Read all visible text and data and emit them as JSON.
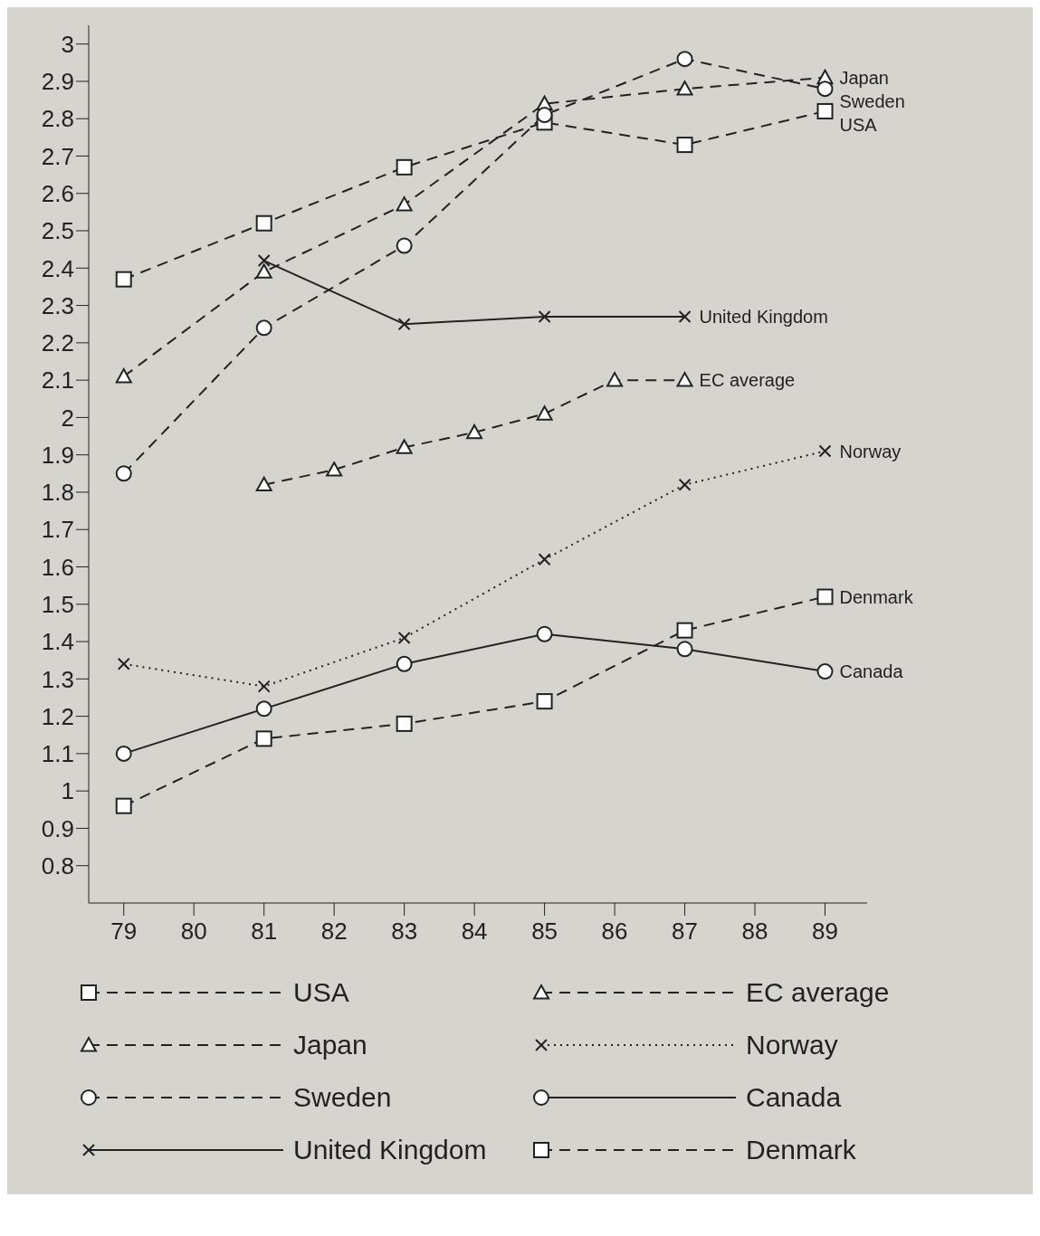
{
  "chart_data": {
    "type": "line",
    "xlim": [
      78.5,
      89.6
    ],
    "xticks": [
      79,
      80,
      81,
      82,
      83,
      84,
      85,
      86,
      87,
      88,
      89
    ],
    "ylim": [
      0.7,
      3.05
    ],
    "yticks": [
      0.8,
      0.9,
      1,
      1.1,
      1.2,
      1.3,
      1.4,
      1.5,
      1.6,
      1.7,
      1.8,
      1.9,
      2,
      2.1,
      2.2,
      2.3,
      2.4,
      2.5,
      2.6,
      2.7,
      2.8,
      2.9,
      3
    ],
    "grid": false,
    "legend": "bottom",
    "series": [
      {
        "name": "USA",
        "color": "#222222",
        "marker": "square",
        "line_style": "dashed",
        "x": [
          79,
          81,
          83,
          85,
          87,
          89
        ],
        "values": [
          2.37,
          2.52,
          2.67,
          2.79,
          2.73,
          2.82
        ]
      },
      {
        "name": "Japan",
        "color": "#222222",
        "marker": "triangle",
        "line_style": "dashed",
        "x": [
          79,
          81,
          83,
          85,
          87,
          89
        ],
        "values": [
          2.11,
          2.39,
          2.57,
          2.84,
          2.88,
          2.91
        ]
      },
      {
        "name": "Sweden",
        "color": "#222222",
        "marker": "circle",
        "line_style": "dashed",
        "x": [
          79,
          81,
          83,
          85,
          87,
          89
        ],
        "values": [
          1.85,
          2.24,
          2.46,
          2.81,
          2.96,
          2.88
        ]
      },
      {
        "name": "United Kingdom",
        "color": "#222222",
        "marker": "cross",
        "line_style": "solid",
        "x": [
          81,
          83,
          85,
          87
        ],
        "values": [
          2.42,
          2.25,
          2.27,
          2.27
        ]
      },
      {
        "name": "EC average",
        "color": "#222222",
        "marker": "triangle",
        "line_style": "dashed",
        "x": [
          81,
          82,
          83,
          84,
          85,
          86,
          87
        ],
        "values": [
          1.82,
          1.86,
          1.92,
          1.96,
          2.01,
          2.1,
          2.1
        ]
      },
      {
        "name": "Norway",
        "color": "#222222",
        "marker": "cross",
        "line_style": "dotted",
        "x": [
          79,
          81,
          83,
          85,
          87,
          89
        ],
        "values": [
          1.34,
          1.28,
          1.41,
          1.62,
          1.82,
          1.91
        ]
      },
      {
        "name": "Canada",
        "color": "#222222",
        "marker": "circle",
        "line_style": "solid",
        "x": [
          79,
          81,
          83,
          85,
          87,
          89
        ],
        "values": [
          1.1,
          1.22,
          1.34,
          1.42,
          1.38,
          1.32
        ]
      },
      {
        "name": "Denmark",
        "color": "#222222",
        "marker": "square",
        "line_style": "dashed",
        "x": [
          79,
          81,
          83,
          85,
          87,
          89
        ],
        "values": [
          0.96,
          1.14,
          1.18,
          1.24,
          1.43,
          1.52
        ]
      }
    ]
  }
}
